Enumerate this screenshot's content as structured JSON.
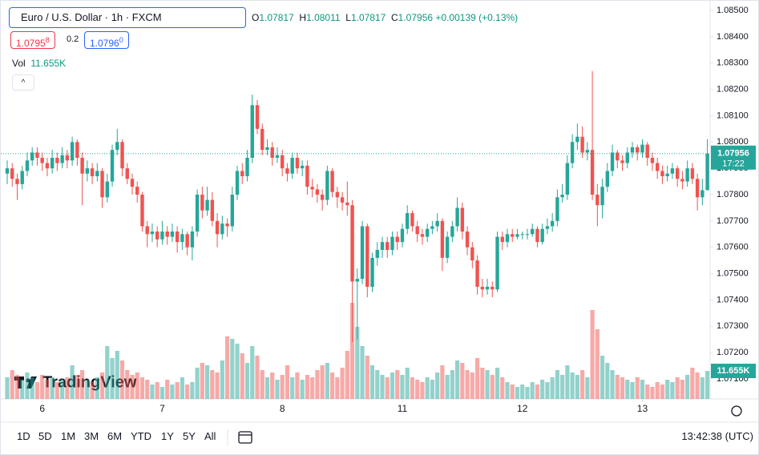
{
  "chart_data": {
    "type": "candlestick",
    "symbol": "Euro / U.S. Dollar · 1h · FXCM",
    "legend": {
      "labels": [
        "O",
        "H",
        "L",
        "C"
      ],
      "change": "+0.00139",
      "change_pct": "(+0.13%)"
    },
    "sell": "1.0795",
    "sell_frac": "8",
    "spread": "0.2",
    "buy": "1.0796",
    "buy_frac": "0",
    "volume_title": "Vol",
    "last_volume_label": "11.655K",
    "countdown": "17:22",
    "up_color": "#26a69a",
    "down_color": "#ef5350",
    "grid": false,
    "ylim": [
      1.071,
      1.085
    ],
    "yticks": [
      {
        "value": 1.085,
        "label": "1.08500"
      },
      {
        "value": 1.084,
        "label": "1.08400"
      },
      {
        "value": 1.083,
        "label": "1.08300"
      },
      {
        "value": 1.082,
        "label": "1.08200"
      },
      {
        "value": 1.081,
        "label": "1.08100"
      },
      {
        "value": 1.08,
        "label": "1.08000"
      },
      {
        "value": 1.079,
        "label": "1.07900"
      },
      {
        "value": 1.078,
        "label": "1.07800"
      },
      {
        "value": 1.077,
        "label": "1.07700"
      },
      {
        "value": 1.076,
        "label": "1.07600"
      },
      {
        "value": 1.075,
        "label": "1.07500"
      },
      {
        "value": 1.074,
        "label": "1.07400"
      },
      {
        "value": 1.073,
        "label": "1.07300"
      },
      {
        "value": 1.072,
        "label": "1.07200"
      },
      {
        "value": 1.071,
        "label": "1.07100"
      }
    ],
    "xticks": [
      {
        "value": 7,
        "label": "6"
      },
      {
        "value": 31,
        "label": "7"
      },
      {
        "value": 55,
        "label": "8"
      },
      {
        "value": 79,
        "label": "11"
      },
      {
        "value": 103,
        "label": "12"
      },
      {
        "value": 127,
        "label": "13"
      }
    ],
    "volume_ylim": [
      0,
      45000
    ],
    "candles": [
      [
        1.0788,
        1.0793,
        1.0784,
        1.079
      ],
      [
        1.079,
        1.0792,
        1.0783,
        1.0786
      ],
      [
        1.0786,
        1.0788,
        1.0778,
        1.0784
      ],
      [
        1.0784,
        1.0791,
        1.0782,
        1.0789
      ],
      [
        1.0789,
        1.0796,
        1.0787,
        1.0793
      ],
      [
        1.0793,
        1.0798,
        1.0791,
        1.0796
      ],
      [
        1.0796,
        1.0798,
        1.0791,
        1.0794
      ],
      [
        1.0794,
        1.0796,
        1.0789,
        1.0792
      ],
      [
        1.0792,
        1.0794,
        1.0787,
        1.079
      ],
      [
        1.079,
        1.0797,
        1.0788,
        1.0794
      ],
      [
        1.0794,
        1.0796,
        1.0789,
        1.0792
      ],
      [
        1.0792,
        1.0798,
        1.079,
        1.0795
      ],
      [
        1.0795,
        1.0797,
        1.079,
        1.0793
      ],
      [
        1.0793,
        1.0802,
        1.0791,
        1.08
      ],
      [
        1.08,
        1.0801,
        1.0791,
        1.0794
      ],
      [
        1.0794,
        1.0796,
        1.0776,
        1.0788
      ],
      [
        1.0788,
        1.0793,
        1.0785,
        1.079
      ],
      [
        1.079,
        1.0792,
        1.0784,
        1.0787
      ],
      [
        1.0787,
        1.0792,
        1.0785,
        1.0789
      ],
      [
        1.0789,
        1.079,
        1.0775,
        1.0779
      ],
      [
        1.0779,
        1.0788,
        1.0777,
        1.0785
      ],
      [
        1.0785,
        1.0799,
        1.0783,
        1.0797
      ],
      [
        1.0797,
        1.0805,
        1.0795,
        1.08
      ],
      [
        1.08,
        1.0801,
        1.0787,
        1.079
      ],
      [
        1.079,
        1.0792,
        1.0784,
        1.0786
      ],
      [
        1.0786,
        1.0788,
        1.078,
        1.0783
      ],
      [
        1.0783,
        1.0785,
        1.0777,
        1.078
      ],
      [
        1.078,
        1.0781,
        1.0766,
        1.0768
      ],
      [
        1.0768,
        1.077,
        1.076,
        1.0765
      ],
      [
        1.0765,
        1.0769,
        1.0762,
        1.0766
      ],
      [
        1.0766,
        1.0768,
        1.076,
        1.0763
      ],
      [
        1.0763,
        1.077,
        1.0761,
        1.0766
      ],
      [
        1.0766,
        1.0768,
        1.0761,
        1.0764
      ],
      [
        1.0764,
        1.0769,
        1.0762,
        1.0766
      ],
      [
        1.0766,
        1.0768,
        1.0758,
        1.0762
      ],
      [
        1.0762,
        1.0767,
        1.0759,
        1.0765
      ],
      [
        1.0765,
        1.0766,
        1.0757,
        1.076
      ],
      [
        1.076,
        1.0768,
        1.0755,
        1.0766
      ],
      [
        1.0766,
        1.0782,
        1.0764,
        1.078
      ],
      [
        1.078,
        1.0783,
        1.0771,
        1.0774
      ],
      [
        1.0774,
        1.0783,
        1.0772,
        1.0778
      ],
      [
        1.0778,
        1.0781,
        1.0768,
        1.077
      ],
      [
        1.077,
        1.0773,
        1.076,
        1.0765
      ],
      [
        1.0765,
        1.0772,
        1.0763,
        1.0769
      ],
      [
        1.0769,
        1.0771,
        1.0764,
        1.0768
      ],
      [
        1.0768,
        1.0783,
        1.0766,
        1.078
      ],
      [
        1.078,
        1.0791,
        1.0778,
        1.0789
      ],
      [
        1.0789,
        1.0792,
        1.0784,
        1.0787
      ],
      [
        1.0787,
        1.0797,
        1.0785,
        1.0794
      ],
      [
        1.0794,
        1.0818,
        1.0792,
        1.0814
      ],
      [
        1.0814,
        1.0816,
        1.0803,
        1.0805
      ],
      [
        1.0805,
        1.0807,
        1.0795,
        1.0797
      ],
      [
        1.0797,
        1.0801,
        1.0795,
        1.0798
      ],
      [
        1.0798,
        1.08,
        1.0791,
        1.0794
      ],
      [
        1.0794,
        1.0798,
        1.0792,
        1.0795
      ],
      [
        1.0795,
        1.0797,
        1.0787,
        1.079
      ],
      [
        1.079,
        1.0792,
        1.0785,
        1.0788
      ],
      [
        1.0788,
        1.0796,
        1.0786,
        1.0794
      ],
      [
        1.0794,
        1.0796,
        1.0788,
        1.079
      ],
      [
        1.079,
        1.0793,
        1.0787,
        1.0791
      ],
      [
        1.0791,
        1.0793,
        1.078,
        1.0783
      ],
      [
        1.0783,
        1.0786,
        1.0779,
        1.0782
      ],
      [
        1.0782,
        1.0784,
        1.0777,
        1.078
      ],
      [
        1.078,
        1.0782,
        1.0774,
        1.0778
      ],
      [
        1.0778,
        1.0791,
        1.0776,
        1.0789
      ],
      [
        1.0789,
        1.079,
        1.0779,
        1.0781
      ],
      [
        1.0781,
        1.0783,
        1.0775,
        1.0779
      ],
      [
        1.0779,
        1.0781,
        1.0774,
        1.0777
      ],
      [
        1.0777,
        1.0785,
        1.0772,
        1.0776
      ],
      [
        1.0776,
        1.0778,
        1.0724,
        1.0747
      ],
      [
        1.0747,
        1.0752,
        1.0725,
        1.0748
      ],
      [
        1.0748,
        1.077,
        1.0746,
        1.0768
      ],
      [
        1.0768,
        1.0769,
        1.0741,
        1.0745
      ],
      [
        1.0745,
        1.0758,
        1.0743,
        1.0756
      ],
      [
        1.0756,
        1.0762,
        1.0753,
        1.0759
      ],
      [
        1.0759,
        1.0764,
        1.0756,
        1.0762
      ],
      [
        1.0762,
        1.0764,
        1.0756,
        1.0759
      ],
      [
        1.0759,
        1.0766,
        1.0757,
        1.0764
      ],
      [
        1.0764,
        1.0766,
        1.0759,
        1.0762
      ],
      [
        1.0762,
        1.0769,
        1.076,
        1.0767
      ],
      [
        1.0767,
        1.0776,
        1.0765,
        1.0773
      ],
      [
        1.0773,
        1.0774,
        1.0766,
        1.0768
      ],
      [
        1.0768,
        1.077,
        1.0762,
        1.0765
      ],
      [
        1.0765,
        1.0767,
        1.0761,
        1.0764
      ],
      [
        1.0764,
        1.0769,
        1.0762,
        1.0767
      ],
      [
        1.0767,
        1.077,
        1.0765,
        1.0768
      ],
      [
        1.0768,
        1.0773,
        1.0766,
        1.077
      ],
      [
        1.077,
        1.0771,
        1.0751,
        1.0756
      ],
      [
        1.0756,
        1.0766,
        1.0754,
        1.0764
      ],
      [
        1.0764,
        1.077,
        1.0762,
        1.0768
      ],
      [
        1.0768,
        1.0779,
        1.0766,
        1.0775
      ],
      [
        1.0775,
        1.0777,
        1.0763,
        1.0766
      ],
      [
        1.0766,
        1.0768,
        1.0757,
        1.076
      ],
      [
        1.076,
        1.0762,
        1.0752,
        1.0755
      ],
      [
        1.0755,
        1.0757,
        1.0742,
        1.0745
      ],
      [
        1.0745,
        1.0748,
        1.0741,
        1.0744
      ],
      [
        1.0744,
        1.0748,
        1.0742,
        1.0745
      ],
      [
        1.0745,
        1.0747,
        1.0741,
        1.0744
      ],
      [
        1.0744,
        1.0766,
        1.0743,
        1.0764
      ],
      [
        1.0764,
        1.0766,
        1.0759,
        1.0762
      ],
      [
        1.0762,
        1.0767,
        1.076,
        1.0765
      ],
      [
        1.0765,
        1.0767,
        1.0762,
        1.0764
      ],
      [
        1.0764,
        1.0767,
        1.0763,
        1.0765
      ],
      [
        1.0765,
        1.0766,
        1.0763,
        1.0765
      ],
      [
        1.0765,
        1.0767,
        1.0763,
        1.0765
      ],
      [
        1.0765,
        1.0769,
        1.0764,
        1.0767
      ],
      [
        1.0767,
        1.0768,
        1.076,
        1.0762
      ],
      [
        1.0762,
        1.0769,
        1.0761,
        1.0767
      ],
      [
        1.0767,
        1.0771,
        1.0765,
        1.0768
      ],
      [
        1.0768,
        1.0773,
        1.0766,
        1.077
      ],
      [
        1.077,
        1.0782,
        1.0768,
        1.0779
      ],
      [
        1.0779,
        1.0784,
        1.0777,
        1.078
      ],
      [
        1.078,
        1.0795,
        1.0778,
        1.0792
      ],
      [
        1.0792,
        1.0803,
        1.079,
        1.08
      ],
      [
        1.08,
        1.0807,
        1.0797,
        1.0802
      ],
      [
        1.0802,
        1.0806,
        1.0794,
        1.0796
      ],
      [
        1.0796,
        1.08,
        1.0793,
        1.0797
      ],
      [
        1.0797,
        1.0827,
        1.0778,
        1.078
      ],
      [
        1.078,
        1.0784,
        1.0768,
        1.0776
      ],
      [
        1.0776,
        1.0786,
        1.0771,
        1.0783
      ],
      [
        1.0783,
        1.0792,
        1.0781,
        1.0789
      ],
      [
        1.0789,
        1.0799,
        1.0787,
        1.0796
      ],
      [
        1.0796,
        1.0797,
        1.079,
        1.0793
      ],
      [
        1.0793,
        1.0795,
        1.0789,
        1.0792
      ],
      [
        1.0792,
        1.0798,
        1.079,
        1.0796
      ],
      [
        1.0796,
        1.08,
        1.0794,
        1.0798
      ],
      [
        1.0798,
        1.0799,
        1.0793,
        1.0796
      ],
      [
        1.0796,
        1.0801,
        1.0794,
        1.0799
      ],
      [
        1.0799,
        1.08,
        1.0791,
        1.0794
      ],
      [
        1.0794,
        1.0796,
        1.0789,
        1.0792
      ],
      [
        1.0792,
        1.0794,
        1.0786,
        1.0789
      ],
      [
        1.0789,
        1.0791,
        1.0784,
        1.0787
      ],
      [
        1.0787,
        1.0791,
        1.0785,
        1.0788
      ],
      [
        1.0788,
        1.0792,
        1.0786,
        1.079
      ],
      [
        1.079,
        1.0791,
        1.0783,
        1.0786
      ],
      [
        1.0786,
        1.0789,
        1.0782,
        1.0785
      ],
      [
        1.0785,
        1.0793,
        1.0783,
        1.079
      ],
      [
        1.079,
        1.0792,
        1.0784,
        1.0786
      ],
      [
        1.0786,
        1.0788,
        1.0774,
        1.0779
      ],
      [
        1.0779,
        1.0786,
        1.0776,
        1.07817
      ],
      [
        1.07817,
        1.08011,
        1.07817,
        1.07956
      ]
    ],
    "volumes": [
      9000,
      12000,
      10000,
      8000,
      11000,
      9000,
      7000,
      10000,
      8000,
      9000,
      7000,
      8000,
      9000,
      14000,
      10000,
      12000,
      8000,
      7000,
      9000,
      11000,
      22000,
      17000,
      20000,
      16000,
      12000,
      10000,
      11000,
      9000,
      8000,
      6000,
      7000,
      5000,
      8000,
      6000,
      7000,
      9000,
      6000,
      7000,
      13000,
      15000,
      14000,
      12000,
      11000,
      16000,
      26000,
      25000,
      23000,
      19000,
      15000,
      22000,
      18000,
      12000,
      9000,
      11000,
      8000,
      10000,
      14000,
      9000,
      11000,
      8000,
      10000,
      9000,
      12000,
      14000,
      15000,
      11000,
      9000,
      13000,
      20000,
      40000,
      30000,
      22000,
      18000,
      14000,
      12000,
      10000,
      9000,
      11000,
      12000,
      10000,
      13000,
      9000,
      8000,
      7000,
      9000,
      8000,
      11000,
      14000,
      10000,
      12000,
      16000,
      15000,
      12000,
      11000,
      17000,
      13000,
      12000,
      10000,
      13000,
      9000,
      7000,
      6000,
      5000,
      6000,
      5000,
      7000,
      6000,
      8000,
      7000,
      9000,
      12000,
      10000,
      14000,
      11000,
      10000,
      12000,
      9000,
      37000,
      29000,
      18000,
      15000,
      12000,
      10000,
      9000,
      8000,
      7000,
      9000,
      8000,
      6000,
      5000,
      7000,
      6000,
      8000,
      7000,
      9000,
      8000,
      10000,
      13000,
      11000,
      9000,
      11655
    ]
  },
  "toolbar": {
    "ranges": [
      "1D",
      "5D",
      "1M",
      "3M",
      "6M",
      "YTD",
      "1Y",
      "5Y",
      "All"
    ],
    "time": "13:42:38 (UTC)"
  },
  "logo": "TradingView"
}
